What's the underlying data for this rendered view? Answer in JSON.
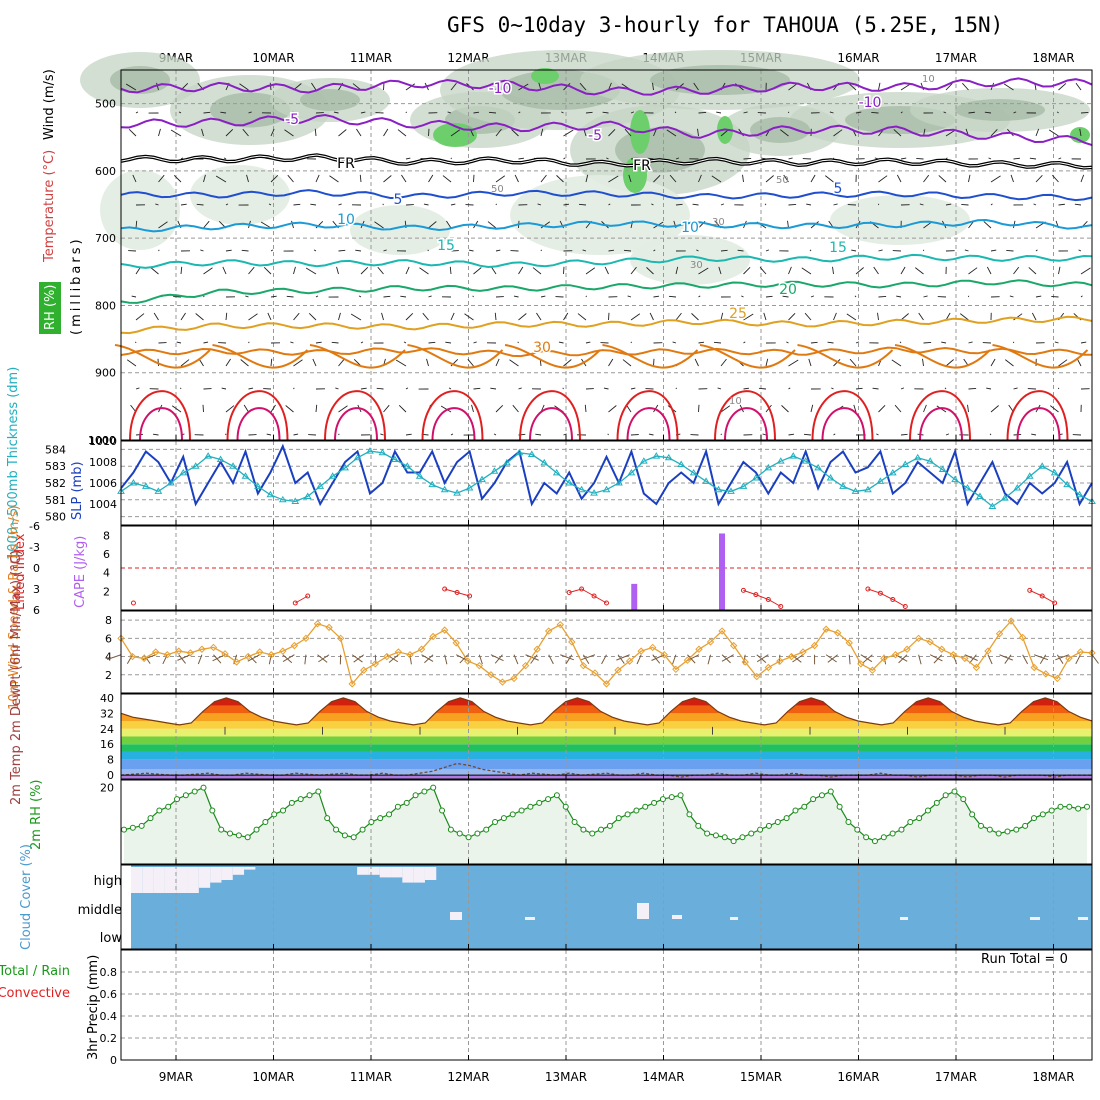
{
  "title": "GFS 0~10day 3-hourly for TAHOUA (5.25E, 15N)",
  "dates": [
    "9MAR",
    "10MAR",
    "11MAR",
    "12MAR",
    "13MAR",
    "14MAR",
    "15MAR",
    "16MAR",
    "17MAR",
    "18MAR"
  ],
  "colors": {
    "purple": "#8a1fc4",
    "black": "#000000",
    "blue": "#1f4fcf",
    "lightblue": "#1a9ad6",
    "teal": "#1ab8b0",
    "green": "#1aa86a",
    "orange": "#e0a020",
    "dkorange": "#e07a10",
    "red": "#e02020",
    "magenta": "#d0106a",
    "cyan": "#20b0c0",
    "slp": "#1a3fc0",
    "cloud": "#6aaedb"
  },
  "chart_data": [
    {
      "panel": "upper-air",
      "type": "heatmap",
      "ylabel_temperature": "Temperature (°C)",
      "ylabel_wind": "Wind (m/s)",
      "ylabel_rh": "RH (%)",
      "ylabel_pressure": "(millibars)",
      "yticks": [
        "500",
        "600",
        "700",
        "800",
        "900",
        "1000"
      ],
      "ylim": [
        1000,
        450
      ],
      "isotherm_labels": [
        "-10",
        "-10",
        "-5",
        "-5",
        "FR",
        "FR",
        "5",
        "5",
        "10",
        "10",
        "15",
        "15",
        "20",
        "25",
        "30"
      ],
      "rh_labels": [
        "10",
        "50",
        "50",
        "30",
        "30",
        "10"
      ],
      "isotherms": [
        {
          "value": -10,
          "color": "purple",
          "levels": [
            478,
            475,
            478,
            470,
            472,
            482,
            480,
            474,
            476,
            468,
            470
          ]
        },
        {
          "value": -5,
          "color": "purple",
          "levels": [
            530,
            528,
            522,
            530,
            536,
            532,
            546,
            538,
            540,
            548,
            556
          ]
        },
        {
          "value": "FR",
          "color": "black",
          "levels": [
            582,
            583,
            580,
            587,
            584,
            590,
            585,
            588,
            586,
            590,
            592
          ]
        },
        {
          "value": 5,
          "color": "blue",
          "levels": [
            635,
            636,
            632,
            638,
            633,
            634,
            638,
            636,
            634,
            638,
            640
          ]
        },
        {
          "value": 10,
          "color": "lightblue",
          "levels": [
            688,
            683,
            680,
            685,
            682,
            678,
            680,
            682,
            680,
            676,
            684
          ]
        },
        {
          "value": 15,
          "color": "teal",
          "levels": [
            742,
            736,
            738,
            736,
            740,
            735,
            730,
            732,
            728,
            730,
            730
          ]
        },
        {
          "value": 20,
          "color": "green",
          "levels": [
            795,
            780,
            778,
            774,
            775,
            772,
            770,
            768,
            770,
            765,
            770
          ]
        },
        {
          "value": 25,
          "color": "orange",
          "levels": [
            838,
            830,
            830,
            832,
            828,
            828,
            824,
            828,
            825,
            822,
            820
          ]
        },
        {
          "value": 30,
          "color": "dkorange",
          "levels": [
            870,
            868,
            870,
            866,
            872,
            870,
            868,
            870,
            866,
            868,
            870
          ]
        }
      ]
    },
    {
      "panel": "thickness-slp",
      "type": "line",
      "ylabel_left": "1000~500mb Thickness (dm)",
      "ylabel_right": "SLP (mb)",
      "yticks_left": [
        "584",
        "583",
        "582",
        "581",
        "580"
      ],
      "yticks_right": [
        "1010",
        "1008",
        "1006",
        "1004"
      ],
      "series": [
        {
          "name": "SLP (mb)",
          "ylim": [
            1002,
            1010
          ],
          "values": [
            1005.5,
            1007,
            1009,
            1008,
            1006,
            1008.5,
            1004,
            1006,
            1008,
            1006,
            1009,
            1005,
            1007,
            1009.5,
            1006,
            1007,
            1004,
            1006,
            1008,
            1009,
            1005,
            1006,
            1009,
            1007,
            1007,
            1009,
            1006,
            1008,
            1009,
            1004.5,
            1006,
            1008,
            1009,
            1004,
            1006,
            1005,
            1007,
            1004.5,
            1006,
            1008.5,
            1006,
            1009,
            1005,
            1004,
            1006,
            1007,
            1006,
            1009,
            1004,
            1006,
            1008,
            1007,
            1005,
            1007,
            1006,
            1009,
            1005.5,
            1008,
            1009,
            1007,
            1007.5,
            1009,
            1005,
            1006,
            1008,
            1007,
            1006,
            1009,
            1004,
            1006,
            1008,
            1005,
            1004,
            1006,
            1005,
            1006,
            1008,
            1004,
            1006
          ]
        },
        {
          "name": "1000~500mb Thickness (dm)",
          "ylim": [
            579.5,
            584.5
          ],
          "values": [
            581.5,
            582,
            581.8,
            581.5,
            582,
            582.6,
            583,
            583.6,
            583.4,
            583,
            582.4,
            581.8,
            581.3,
            581,
            580.9,
            581.2,
            581.8,
            582.4,
            582.9,
            583.5,
            583.9,
            583.8,
            583.4,
            583,
            582.4,
            581.9,
            581.6,
            581.4,
            581.7,
            582.2,
            582.7,
            583.2,
            583.8,
            583.7,
            583.2,
            582.6,
            582,
            581.6,
            581.4,
            581.6,
            582,
            582.6,
            583.3,
            583.6,
            583.5,
            583.1,
            582.6,
            582.1,
            581.6,
            581.5,
            581.8,
            582.3,
            582.9,
            583.3,
            583.6,
            583.3,
            582.9,
            582.3,
            581.8,
            581.5,
            581.6,
            582.1,
            582.6,
            583.1,
            583.5,
            583.3,
            582.8,
            582.2,
            581.7,
            581.2,
            580.6,
            581.1,
            581.7,
            582.4,
            583,
            582.6,
            581.9,
            581.3,
            580.9
          ]
        }
      ]
    },
    {
      "panel": "stability",
      "type": "bar",
      "ylabel_left": "Lifted Index",
      "ylabel_right": "CAPE (J/kg)",
      "yticks_left": [
        "-6",
        "-3",
        "0",
        "3",
        "6"
      ],
      "yticks_right": [
        "8",
        "6",
        "4",
        "2"
      ],
      "cape_bars": [
        {
          "x": 5.2,
          "value": 2.8
        },
        {
          "x": 6.1,
          "value": 8.2
        }
      ],
      "lifted_index": [
        6,
        5,
        6,
        6,
        6,
        6,
        6,
        6,
        6,
        6,
        6,
        6,
        6,
        6,
        5,
        4,
        6,
        6,
        6,
        6,
        6,
        6,
        6,
        6,
        6,
        6,
        3,
        3.5,
        4,
        6,
        6,
        6,
        6,
        6,
        6,
        6,
        3.5,
        3,
        4,
        5,
        6,
        6,
        6,
        6,
        6,
        6,
        6,
        6,
        6,
        6,
        3.2,
        3.8,
        4.5,
        5.5,
        6,
        6,
        6,
        6,
        6,
        6,
        3,
        3.6,
        4.5,
        5.5,
        6,
        6,
        6,
        6,
        6,
        6,
        6,
        6,
        6,
        3.2,
        4,
        5,
        6,
        6,
        6
      ]
    },
    {
      "panel": "wind-10m",
      "type": "line",
      "ylabel": "10m Wind Speed & Barbs (m/s)",
      "yticks": [
        "8",
        "6",
        "4",
        "2"
      ],
      "ylim": [
        0,
        9
      ],
      "series": [
        {
          "name": "10m Wind Speed",
          "values": [
            6,
            4,
            3.8,
            4.5,
            4.2,
            4.6,
            4.4,
            4.8,
            5,
            4.3,
            3.4,
            4,
            4.5,
            4.2,
            4.6,
            5.2,
            6,
            7.6,
            7.2,
            6,
            1,
            2.5,
            3.2,
            4,
            4.5,
            4.2,
            4.8,
            6.2,
            6.9,
            5.5,
            3.5,
            3,
            2,
            1.2,
            1.6,
            3,
            4.8,
            6.8,
            7.5,
            5.6,
            3,
            2.2,
            1,
            2.5,
            3.5,
            4.6,
            5,
            4.2,
            2.6,
            3.6,
            4.8,
            5.6,
            6.8,
            5.2,
            3.4,
            1.8,
            2.8,
            3.5,
            4,
            4.5,
            5.2,
            7,
            6.6,
            5.5,
            3.2,
            2.5,
            3.8,
            4.2,
            4.8,
            6,
            5.6,
            4.8,
            4.2,
            3.8,
            2.8,
            4.6,
            6.5,
            7.9,
            6.1,
            2.8,
            2.1,
            1.6,
            3.8,
            4.5,
            4.4
          ]
        }
      ]
    },
    {
      "panel": "temperature-2m",
      "type": "area",
      "ylabel": "2m Temp 2m DewPt (6hr Min/Max) (°C)",
      "yticks": [
        "40",
        "32",
        "24",
        "16",
        "8",
        "0"
      ],
      "ylim": [
        -2,
        42
      ],
      "series": [
        {
          "name": "2m Temp",
          "values": [
            32,
            30,
            29,
            28,
            27,
            26,
            27,
            33,
            38,
            40,
            38,
            33,
            30,
            28,
            27,
            26,
            27,
            33,
            38,
            40,
            38,
            33,
            30,
            28,
            27,
            26,
            27,
            33,
            38,
            40,
            38,
            33,
            30,
            28,
            27,
            26,
            27,
            33,
            38,
            40,
            38,
            33,
            30,
            28,
            27,
            26,
            27,
            33,
            38,
            40,
            38,
            33,
            30,
            28,
            27,
            26,
            27,
            33,
            38,
            40,
            38,
            33,
            30,
            28,
            27,
            26,
            27,
            33,
            38,
            40,
            38,
            33,
            30,
            28,
            27,
            26,
            27,
            33,
            38,
            40,
            38,
            33,
            30,
            28
          ]
        },
        {
          "name": "2m DewPt",
          "values": [
            0,
            0.5,
            1,
            0.5,
            0,
            0,
            0.5,
            1,
            0,
            0,
            1,
            0.5,
            0,
            0,
            1,
            0.5,
            0,
            0.5,
            1,
            0,
            0,
            1,
            0,
            0,
            1,
            2,
            4,
            6,
            5,
            3,
            2,
            1,
            0,
            1,
            0.5,
            0,
            1,
            0,
            0.5,
            1,
            0,
            0,
            1,
            0,
            0,
            -1,
            0,
            0,
            1,
            0,
            0,
            1,
            0,
            0,
            1,
            0,
            0,
            -1,
            0,
            0,
            0,
            1,
            0,
            0,
            -1,
            0,
            0,
            0,
            -1,
            0,
            0,
            -1,
            0,
            0,
            0,
            -1,
            0,
            0,
            0
          ]
        }
      ]
    },
    {
      "panel": "rh-2m",
      "type": "line",
      "ylabel": "2m RH (%)",
      "yticks": [
        "20"
      ],
      "ylim": [
        0,
        22
      ],
      "series": [
        {
          "name": "2m RH",
          "values": [
            9,
            9.5,
            10,
            12,
            14,
            15,
            17,
            18,
            19,
            20,
            14,
            9,
            8,
            7.5,
            7,
            9,
            11,
            13,
            14,
            16,
            17,
            18,
            19,
            12,
            9,
            7.5,
            7,
            9,
            11,
            12,
            13,
            15,
            16,
            18,
            19,
            20,
            14,
            9,
            8,
            7,
            8,
            9,
            11,
            12,
            13,
            14,
            15,
            16,
            17,
            18,
            15,
            11,
            9,
            8,
            9,
            10,
            12,
            13,
            14,
            15,
            16,
            17,
            17.5,
            18,
            13,
            10,
            8,
            7.5,
            7,
            6,
            7,
            8,
            9,
            10,
            11,
            12,
            14,
            15,
            17,
            18,
            19,
            15,
            11,
            9,
            7,
            6,
            7,
            8,
            9,
            11,
            12,
            14,
            16,
            18,
            19,
            17,
            13,
            10,
            9,
            8,
            8.5,
            9,
            10,
            12,
            13,
            14,
            15,
            15,
            14.5,
            15
          ]
        }
      ]
    },
    {
      "panel": "cloud-cover",
      "type": "bar",
      "ylabel": "Cloud Cover (%)",
      "levels": [
        "high",
        "middle",
        "low"
      ],
      "high": [
        100,
        100,
        100,
        100,
        100,
        100,
        80,
        60,
        50,
        30,
        10,
        0,
        0,
        0,
        0,
        0,
        0,
        0,
        0,
        0,
        30,
        30,
        40,
        40,
        60,
        60,
        50,
        0,
        0,
        0,
        0,
        0,
        0,
        0,
        0,
        0,
        0,
        0,
        0,
        0,
        0,
        0,
        0,
        0,
        0,
        0,
        0,
        0,
        0,
        0,
        0,
        0,
        0,
        0,
        0,
        0,
        0,
        0,
        0,
        0,
        0,
        0,
        0,
        0,
        0,
        0,
        0,
        0,
        0,
        0,
        0,
        0,
        0,
        0,
        0,
        0,
        0,
        0,
        0,
        0,
        0,
        0,
        0,
        0,
        0
      ],
      "middle": [
        0,
        0,
        0,
        0,
        0,
        0,
        0,
        0,
        0,
        0,
        0,
        0,
        0,
        0,
        0,
        0,
        0,
        0,
        0,
        0,
        0,
        0,
        0,
        0,
        0,
        0,
        0,
        0,
        0,
        0,
        0,
        0,
        0,
        0,
        0,
        0,
        0,
        0,
        0,
        0,
        0,
        0,
        0,
        0,
        0,
        0,
        0,
        0,
        0,
        0,
        0,
        0,
        0,
        0,
        0,
        0,
        0,
        0,
        0,
        0,
        0,
        0,
        0,
        0,
        0,
        0,
        0,
        0,
        0,
        0,
        0,
        0,
        0,
        0,
        0,
        0,
        0,
        0,
        0,
        0,
        0,
        0,
        0,
        0,
        0
      ]
    },
    {
      "panel": "precipitation",
      "type": "bar",
      "ylabel_total": "Total / Rain",
      "ylabel_convective": "Convective",
      "ylabel": "3hr Precip (mm)",
      "yticks": [
        "0.8",
        "0.6",
        "0.4",
        "0.2",
        "0"
      ],
      "ylim": [
        0,
        1
      ],
      "run_total": "Run Total = 0",
      "values": []
    }
  ]
}
